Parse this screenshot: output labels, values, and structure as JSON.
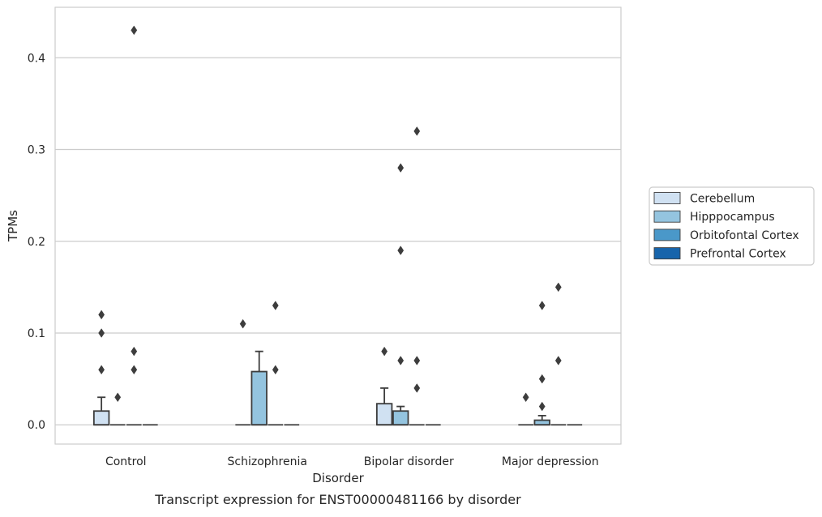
{
  "chart_data": {
    "type": "box",
    "title": "",
    "caption": "Transcript expression for ENST00000481166 by disorder",
    "xlabel": "Disorder",
    "ylabel": "TPMs",
    "ylim": [
      -0.021,
      0.455
    ],
    "yticks": [
      0.0,
      0.1,
      0.2,
      0.3,
      0.4
    ],
    "ytick_labels": [
      "0.0",
      "0.1",
      "0.2",
      "0.3",
      "0.4"
    ],
    "grid": "horizontal",
    "legend_position": "right",
    "categories": [
      "Control",
      "Schizophrenia",
      "Bipolar disorder",
      "Major depression"
    ],
    "series": [
      {
        "name": "Cerebellum",
        "color": "#d0e1f2",
        "boxes": [
          {
            "q1": 0.0,
            "median": 0.0,
            "q3": 0.015,
            "whisker_low": 0.0,
            "whisker_high": 0.03,
            "outliers": [
              0.06,
              0.1,
              0.12
            ]
          },
          {
            "q1": 0.0,
            "median": 0.0,
            "q3": 0.0,
            "whisker_low": 0.0,
            "whisker_high": 0.0,
            "outliers": [
              0.11
            ]
          },
          {
            "q1": 0.0,
            "median": 0.0,
            "q3": 0.023,
            "whisker_low": 0.0,
            "whisker_high": 0.04,
            "outliers": [
              0.08
            ]
          },
          {
            "q1": 0.0,
            "median": 0.0,
            "q3": 0.0,
            "whisker_low": 0.0,
            "whisker_high": 0.0,
            "outliers": [
              0.03
            ]
          }
        ]
      },
      {
        "name": "Hipppocampus",
        "color": "#94c4df",
        "boxes": [
          {
            "q1": 0.0,
            "median": 0.0,
            "q3": 0.0,
            "whisker_low": 0.0,
            "whisker_high": 0.0,
            "outliers": [
              0.03
            ]
          },
          {
            "q1": 0.0,
            "median": 0.0,
            "q3": 0.058,
            "whisker_low": 0.0,
            "whisker_high": 0.08,
            "outliers": []
          },
          {
            "q1": 0.0,
            "median": 0.0,
            "q3": 0.015,
            "whisker_low": 0.0,
            "whisker_high": 0.02,
            "outliers": [
              0.07,
              0.19,
              0.28
            ]
          },
          {
            "q1": 0.0,
            "median": 0.0,
            "q3": 0.005,
            "whisker_low": 0.0,
            "whisker_high": 0.01,
            "outliers": [
              0.02,
              0.05,
              0.13
            ]
          }
        ]
      },
      {
        "name": "Orbitofontal Cortex",
        "color": "#4a98c9",
        "boxes": [
          {
            "q1": 0.0,
            "median": 0.0,
            "q3": 0.0,
            "whisker_low": 0.0,
            "whisker_high": 0.0,
            "outliers": [
              0.06,
              0.08,
              0.43
            ]
          },
          {
            "q1": 0.0,
            "median": 0.0,
            "q3": 0.0,
            "whisker_low": 0.0,
            "whisker_high": 0.0,
            "outliers": [
              0.06,
              0.13
            ]
          },
          {
            "q1": 0.0,
            "median": 0.0,
            "q3": 0.0,
            "whisker_low": 0.0,
            "whisker_high": 0.0,
            "outliers": [
              0.04,
              0.07,
              0.32
            ]
          },
          {
            "q1": 0.0,
            "median": 0.0,
            "q3": 0.0,
            "whisker_low": 0.0,
            "whisker_high": 0.0,
            "outliers": [
              0.07,
              0.15
            ]
          }
        ]
      },
      {
        "name": "Prefrontal Cortex",
        "color": "#1764ab",
        "boxes": [
          {
            "q1": 0.0,
            "median": 0.0,
            "q3": 0.0,
            "whisker_low": 0.0,
            "whisker_high": 0.0,
            "outliers": []
          },
          {
            "q1": 0.0,
            "median": 0.0,
            "q3": 0.0,
            "whisker_low": 0.0,
            "whisker_high": 0.0,
            "outliers": []
          },
          {
            "q1": 0.0,
            "median": 0.0,
            "q3": 0.0,
            "whisker_low": 0.0,
            "whisker_high": 0.0,
            "outliers": []
          },
          {
            "q1": 0.0,
            "median": 0.0,
            "q3": 0.0,
            "whisker_low": 0.0,
            "whisker_high": 0.0,
            "outliers": []
          }
        ]
      }
    ]
  }
}
